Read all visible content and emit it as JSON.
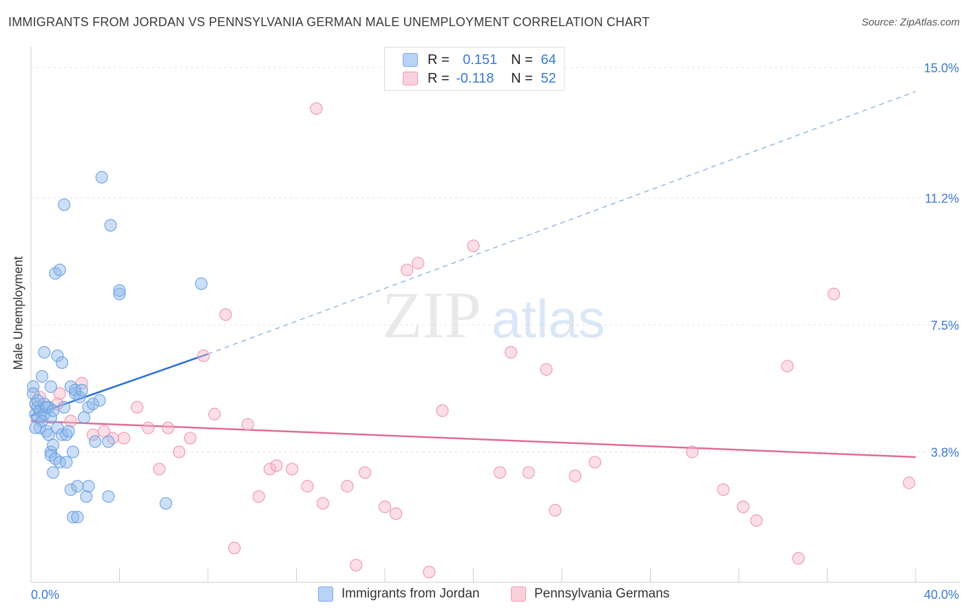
{
  "title": "IMMIGRANTS FROM JORDAN VS PENNSYLVANIA GERMAN MALE UNEMPLOYMENT CORRELATION CHART",
  "source": "Source: ZipAtlas.com",
  "watermark": {
    "zip": "ZIP",
    "atlas": "atlas"
  },
  "legend": {
    "rows": [
      {
        "r_label": "R = ",
        "r_value": "0.151",
        "n_label": "N = ",
        "n_value": "64"
      },
      {
        "r_label": "R = ",
        "r_value": "-0.118",
        "n_label": "N = ",
        "n_value": "52"
      }
    ]
  },
  "chart_data": {
    "type": "scatter",
    "title": "IMMIGRANTS FROM JORDAN VS PENNSYLVANIA GERMAN MALE UNEMPLOYMENT CORRELATION CHART",
    "xlabel": "",
    "ylabel": "Male Unemployment",
    "xlim": [
      0,
      40
    ],
    "ylim": [
      0,
      15.4
    ],
    "x_tick_labels": [
      "0.0%",
      "40.0%"
    ],
    "y_ticks": [
      3.8,
      7.5,
      11.2,
      15.0
    ],
    "y_tick_labels": [
      "3.8%",
      "7.5%",
      "11.2%",
      "15.0%"
    ],
    "grid": true,
    "series": [
      {
        "name": "Immigrants from Jordan",
        "color": "#8fb8ec",
        "stroke": "#6a9edf",
        "trend_color": "#2a6fd4",
        "trend": {
          "x0": 0,
          "y0": 4.85,
          "x1": 8.0,
          "y1": 6.65,
          "dashed_to_x": 40,
          "dashed_to_y": 14.3
        },
        "points": [
          [
            0.1,
            5.7
          ],
          [
            0.1,
            5.5
          ],
          [
            0.2,
            5.2
          ],
          [
            0.2,
            4.9
          ],
          [
            0.3,
            5.1
          ],
          [
            0.3,
            4.8
          ],
          [
            0.4,
            4.5
          ],
          [
            0.4,
            5.0
          ],
          [
            0.5,
            4.7
          ],
          [
            0.5,
            6.0
          ],
          [
            0.6,
            4.9
          ],
          [
            0.6,
            5.2
          ],
          [
            0.6,
            6.7
          ],
          [
            0.7,
            4.4
          ],
          [
            0.8,
            4.3
          ],
          [
            0.8,
            5.1
          ],
          [
            0.9,
            5.7
          ],
          [
            0.9,
            4.8
          ],
          [
            0.9,
            3.8
          ],
          [
            0.9,
            3.7
          ],
          [
            1.0,
            4.0
          ],
          [
            1.0,
            3.2
          ],
          [
            1.1,
            9.0
          ],
          [
            1.1,
            3.6
          ],
          [
            1.2,
            6.6
          ],
          [
            1.2,
            4.5
          ],
          [
            1.3,
            9.1
          ],
          [
            1.3,
            3.5
          ],
          [
            1.4,
            6.4
          ],
          [
            1.4,
            4.3
          ],
          [
            1.5,
            11.0
          ],
          [
            1.5,
            5.1
          ],
          [
            1.6,
            4.3
          ],
          [
            1.6,
            3.5
          ],
          [
            1.7,
            4.4
          ],
          [
            1.8,
            5.7
          ],
          [
            1.8,
            2.7
          ],
          [
            1.9,
            3.8
          ],
          [
            1.9,
            1.9
          ],
          [
            2.0,
            5.5
          ],
          [
            2.0,
            5.6
          ],
          [
            2.1,
            2.8
          ],
          [
            2.1,
            1.9
          ],
          [
            2.2,
            5.4
          ],
          [
            2.3,
            5.6
          ],
          [
            2.4,
            4.8
          ],
          [
            2.5,
            2.5
          ],
          [
            2.6,
            2.8
          ],
          [
            2.6,
            5.1
          ],
          [
            2.8,
            5.2
          ],
          [
            2.9,
            4.1
          ],
          [
            3.2,
            11.8
          ],
          [
            3.1,
            5.3
          ],
          [
            3.5,
            2.5
          ],
          [
            3.5,
            4.1
          ],
          [
            3.6,
            10.4
          ],
          [
            4.0,
            8.4
          ],
          [
            4.0,
            8.5
          ],
          [
            6.1,
            2.3
          ],
          [
            7.7,
            8.7
          ],
          [
            0.3,
            5.3
          ],
          [
            0.7,
            5.1
          ],
          [
            0.2,
            4.5
          ],
          [
            1.0,
            5.0
          ]
        ]
      },
      {
        "name": "Pennsylvania Germans",
        "color": "#f6b6c8",
        "stroke": "#ec94ae",
        "trend_color": "#e06b96",
        "trend": {
          "x0": 0,
          "y0": 4.7,
          "x1": 40,
          "y1": 3.65
        },
        "points": [
          [
            0.4,
            5.4
          ],
          [
            1.2,
            5.2
          ],
          [
            1.3,
            5.5
          ],
          [
            1.8,
            4.7
          ],
          [
            2.3,
            5.8
          ],
          [
            2.8,
            4.3
          ],
          [
            3.3,
            4.4
          ],
          [
            3.7,
            4.2
          ],
          [
            4.2,
            4.2
          ],
          [
            4.8,
            5.1
          ],
          [
            5.3,
            4.5
          ],
          [
            5.8,
            3.3
          ],
          [
            6.2,
            4.5
          ],
          [
            6.7,
            3.8
          ],
          [
            7.2,
            4.2
          ],
          [
            7.8,
            6.6
          ],
          [
            8.3,
            4.9
          ],
          [
            8.8,
            7.8
          ],
          [
            9.2,
            1.0
          ],
          [
            9.8,
            4.6
          ],
          [
            10.3,
            2.5
          ],
          [
            10.8,
            3.3
          ],
          [
            11.1,
            3.4
          ],
          [
            11.8,
            3.3
          ],
          [
            12.5,
            2.8
          ],
          [
            12.9,
            13.8
          ],
          [
            13.2,
            2.3
          ],
          [
            14.3,
            2.8
          ],
          [
            14.7,
            0.5
          ],
          [
            15.1,
            3.2
          ],
          [
            16.0,
            2.2
          ],
          [
            16.5,
            2.0
          ],
          [
            17.0,
            9.1
          ],
          [
            17.5,
            9.3
          ],
          [
            18.0,
            0.3
          ],
          [
            18.6,
            5.0
          ],
          [
            20.0,
            9.8
          ],
          [
            21.2,
            3.2
          ],
          [
            21.7,
            6.7
          ],
          [
            22.5,
            3.2
          ],
          [
            23.3,
            6.2
          ],
          [
            23.7,
            2.1
          ],
          [
            24.6,
            3.1
          ],
          [
            25.5,
            3.5
          ],
          [
            29.9,
            3.8
          ],
          [
            31.3,
            2.7
          ],
          [
            32.2,
            2.2
          ],
          [
            32.8,
            1.8
          ],
          [
            34.2,
            6.3
          ],
          [
            34.7,
            0.7
          ],
          [
            36.3,
            8.4
          ],
          [
            39.7,
            2.9
          ]
        ]
      }
    ]
  }
}
